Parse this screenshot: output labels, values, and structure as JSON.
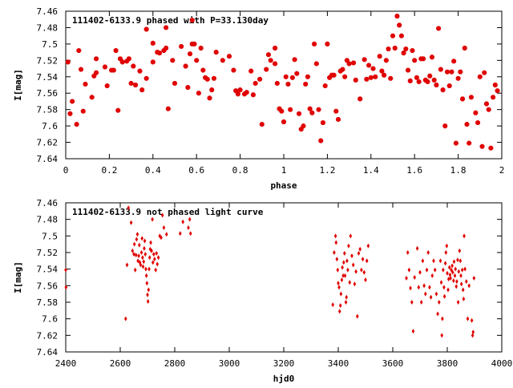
{
  "chart_data": [
    {
      "type": "scatter",
      "title": "111402-6133.9 phased with P=33.130day",
      "xlabel": "phase",
      "ylabel": "I[mag]",
      "xlim": [
        0,
        2
      ],
      "ylim": [
        7.64,
        7.46
      ],
      "y_inverted": true,
      "xticks": [
        "0",
        "0.2",
        "0.4",
        "0.6",
        "0.8",
        "1",
        "1.2",
        "1.4",
        "1.6",
        "1.8",
        "2"
      ],
      "yticks": [
        "7.46",
        "7.48",
        "7.5",
        "7.52",
        "7.54",
        "7.56",
        "7.58",
        "7.6",
        "7.62",
        "7.64"
      ],
      "marker_color": "#e00000",
      "points": [
        [
          0.01,
          7.522
        ],
        [
          0.02,
          7.585
        ],
        [
          0.03,
          7.57
        ],
        [
          0.05,
          7.598
        ],
        [
          0.06,
          7.508
        ],
        [
          0.07,
          7.531
        ],
        [
          0.08,
          7.582
        ],
        [
          0.09,
          7.549
        ],
        [
          0.12,
          7.565
        ],
        [
          0.13,
          7.539
        ],
        [
          0.14,
          7.535
        ],
        [
          0.14,
          7.518
        ],
        [
          0.18,
          7.528
        ],
        [
          0.19,
          7.551
        ],
        [
          0.21,
          7.532
        ],
        [
          0.23,
          7.508
        ],
        [
          0.22,
          7.532
        ],
        [
          0.24,
          7.581
        ],
        [
          0.25,
          7.518
        ],
        [
          0.26,
          7.522
        ],
        [
          0.28,
          7.521
        ],
        [
          0.29,
          7.518
        ],
        [
          0.3,
          7.548
        ],
        [
          0.31,
          7.527
        ],
        [
          0.32,
          7.55
        ],
        [
          0.34,
          7.533
        ],
        [
          0.35,
          7.556
        ],
        [
          0.37,
          7.542
        ],
        [
          0.37,
          7.482
        ],
        [
          0.4,
          7.522
        ],
        [
          0.4,
          7.499
        ],
        [
          0.42,
          7.51
        ],
        [
          0.43,
          7.511
        ],
        [
          0.45,
          7.508
        ],
        [
          0.46,
          7.48
        ],
        [
          0.46,
          7.505
        ],
        [
          0.47,
          7.579
        ],
        [
          0.49,
          7.52
        ],
        [
          0.5,
          7.548
        ],
        [
          0.53,
          7.503
        ],
        [
          0.55,
          7.527
        ],
        [
          0.56,
          7.553
        ],
        [
          0.57,
          7.512
        ],
        [
          0.58,
          7.471
        ],
        [
          0.58,
          7.5
        ],
        [
          0.59,
          7.5
        ],
        [
          0.6,
          7.52
        ],
        [
          0.61,
          7.56
        ],
        [
          0.62,
          7.505
        ],
        [
          0.63,
          7.532
        ],
        [
          0.64,
          7.541
        ],
        [
          0.65,
          7.543
        ],
        [
          0.66,
          7.566
        ],
        [
          0.67,
          7.556
        ],
        [
          0.68,
          7.542
        ],
        [
          0.69,
          7.51
        ],
        [
          0.72,
          7.52
        ],
        [
          0.75,
          7.515
        ],
        [
          0.77,
          7.532
        ],
        [
          0.78,
          7.557
        ],
        [
          0.79,
          7.561
        ],
        [
          0.8,
          7.556
        ],
        [
          0.82,
          7.561
        ],
        [
          0.83,
          7.559
        ],
        [
          0.85,
          7.533
        ],
        [
          0.86,
          7.562
        ],
        [
          0.87,
          7.548
        ],
        [
          0.89,
          7.543
        ],
        [
          0.9,
          7.598
        ],
        [
          0.92,
          7.531
        ],
        [
          0.93,
          7.513
        ],
        [
          0.94,
          7.52
        ],
        [
          0.96,
          7.505
        ],
        [
          0.96,
          7.524
        ],
        [
          0.97,
          7.548
        ],
        [
          0.98,
          7.579
        ],
        [
          0.99,
          7.582
        ],
        [
          1.0,
          7.595
        ],
        [
          1.01,
          7.54
        ],
        [
          1.02,
          7.549
        ],
        [
          1.03,
          7.58
        ],
        [
          1.04,
          7.541
        ],
        [
          1.05,
          7.519
        ],
        [
          1.06,
          7.536
        ],
        [
          1.07,
          7.585
        ],
        [
          1.08,
          7.604
        ],
        [
          1.09,
          7.6
        ],
        [
          1.1,
          7.549
        ],
        [
          1.11,
          7.54
        ],
        [
          1.12,
          7.579
        ],
        [
          1.13,
          7.584
        ],
        [
          1.14,
          7.5
        ],
        [
          1.15,
          7.524
        ],
        [
          1.16,
          7.58
        ],
        [
          1.17,
          7.618
        ],
        [
          1.18,
          7.596
        ],
        [
          1.19,
          7.551
        ],
        [
          1.2,
          7.5
        ],
        [
          1.21,
          7.541
        ],
        [
          1.22,
          7.538
        ],
        [
          1.23,
          7.538
        ],
        [
          1.24,
          7.582
        ],
        [
          1.25,
          7.592
        ],
        [
          1.26,
          7.533
        ],
        [
          1.27,
          7.531
        ],
        [
          1.28,
          7.54
        ],
        [
          1.29,
          7.52
        ],
        [
          1.3,
          7.524
        ],
        [
          1.32,
          7.523
        ],
        [
          1.33,
          7.544
        ],
        [
          1.35,
          7.567
        ],
        [
          1.37,
          7.519
        ],
        [
          1.38,
          7.543
        ],
        [
          1.39,
          7.526
        ],
        [
          1.4,
          7.541
        ],
        [
          1.41,
          7.53
        ],
        [
          1.42,
          7.54
        ],
        [
          1.44,
          7.515
        ],
        [
          1.45,
          7.533
        ],
        [
          1.46,
          7.538
        ],
        [
          1.47,
          7.52
        ],
        [
          1.48,
          7.506
        ],
        [
          1.49,
          7.542
        ],
        [
          1.5,
          7.49
        ],
        [
          1.51,
          7.505
        ],
        [
          1.52,
          7.466
        ],
        [
          1.53,
          7.477
        ],
        [
          1.54,
          7.49
        ],
        [
          1.55,
          7.511
        ],
        [
          1.56,
          7.506
        ],
        [
          1.57,
          7.532
        ],
        [
          1.58,
          7.545
        ],
        [
          1.59,
          7.508
        ],
        [
          1.6,
          7.52
        ],
        [
          1.61,
          7.541
        ],
        [
          1.62,
          7.546
        ],
        [
          1.63,
          7.518
        ],
        [
          1.64,
          7.518
        ],
        [
          1.65,
          7.544
        ],
        [
          1.66,
          7.546
        ],
        [
          1.67,
          7.539
        ],
        [
          1.68,
          7.516
        ],
        [
          1.69,
          7.544
        ],
        [
          1.7,
          7.55
        ],
        [
          1.71,
          7.481
        ],
        [
          1.72,
          7.531
        ],
        [
          1.73,
          7.556
        ],
        [
          1.74,
          7.6
        ],
        [
          1.75,
          7.534
        ],
        [
          1.76,
          7.551
        ],
        [
          1.77,
          7.534
        ],
        [
          1.78,
          7.521
        ],
        [
          1.79,
          7.621
        ],
        [
          1.8,
          7.542
        ],
        [
          1.81,
          7.534
        ],
        [
          1.82,
          7.567
        ],
        [
          1.83,
          7.505
        ],
        [
          1.84,
          7.598
        ],
        [
          1.85,
          7.621
        ],
        [
          1.86,
          7.565
        ],
        [
          1.88,
          7.584
        ],
        [
          1.89,
          7.596
        ],
        [
          1.9,
          7.54
        ],
        [
          1.91,
          7.625
        ],
        [
          1.92,
          7.535
        ],
        [
          1.93,
          7.573
        ],
        [
          1.94,
          7.58
        ],
        [
          1.95,
          7.627
        ],
        [
          1.96,
          7.565
        ],
        [
          1.97,
          7.55
        ],
        [
          1.98,
          7.557
        ]
      ]
    },
    {
      "type": "scatter",
      "title": "111402-6133.9 not phased light curve",
      "xlabel": "hjd0",
      "ylabel": "I[mag]",
      "xlim": [
        2400,
        4000
      ],
      "ylim": [
        7.64,
        7.46
      ],
      "y_inverted": true,
      "xticks": [
        "2400",
        "2600",
        "2800",
        "3000",
        "3200",
        "3400",
        "3600",
        "3800",
        "4000"
      ],
      "yticks": [
        "7.46",
        "7.48",
        "7.5",
        "7.52",
        "7.54",
        "7.56",
        "7.58",
        "7.6",
        "7.62",
        "7.64"
      ],
      "marker_color": "#e00000",
      "points": [
        [
          2400,
          7.541
        ],
        [
          2401,
          7.562
        ],
        [
          2620,
          7.6
        ],
        [
          2625,
          7.535
        ],
        [
          2630,
          7.466
        ],
        [
          2640,
          7.484
        ],
        [
          2645,
          7.518
        ],
        [
          2650,
          7.522
        ],
        [
          2652,
          7.51
        ],
        [
          2655,
          7.541
        ],
        [
          2658,
          7.523
        ],
        [
          2660,
          7.504
        ],
        [
          2663,
          7.498
        ],
        [
          2665,
          7.53
        ],
        [
          2668,
          7.524
        ],
        [
          2670,
          7.511
        ],
        [
          2672,
          7.532
        ],
        [
          2675,
          7.535
        ],
        [
          2678,
          7.52
        ],
        [
          2680,
          7.503
        ],
        [
          2682,
          7.526
        ],
        [
          2684,
          7.537
        ],
        [
          2686,
          7.531
        ],
        [
          2688,
          7.515
        ],
        [
          2690,
          7.506
        ],
        [
          2692,
          7.522
        ],
        [
          2694,
          7.54
        ],
        [
          2696,
          7.548
        ],
        [
          2698,
          7.557
        ],
        [
          2700,
          7.571
        ],
        [
          2702,
          7.579
        ],
        [
          2704,
          7.565
        ],
        [
          2706,
          7.54
        ],
        [
          2708,
          7.526
        ],
        [
          2710,
          7.516
        ],
        [
          2712,
          7.508
        ],
        [
          2715,
          7.518
        ],
        [
          2718,
          7.48
        ],
        [
          2720,
          7.532
        ],
        [
          2723,
          7.522
        ],
        [
          2726,
          7.528
        ],
        [
          2730,
          7.541
        ],
        [
          2733,
          7.521
        ],
        [
          2736,
          7.534
        ],
        [
          2740,
          7.526
        ],
        [
          2745,
          7.5
        ],
        [
          2750,
          7.502
        ],
        [
          2755,
          7.475
        ],
        [
          2760,
          7.49
        ],
        [
          2770,
          7.498
        ],
        [
          2820,
          7.497
        ],
        [
          2830,
          7.483
        ],
        [
          2850,
          7.49
        ],
        [
          2855,
          7.48
        ],
        [
          2858,
          7.497
        ],
        [
          3380,
          7.583
        ],
        [
          3385,
          7.52
        ],
        [
          3390,
          7.5
        ],
        [
          3392,
          7.508
        ],
        [
          3395,
          7.528
        ],
        [
          3398,
          7.541
        ],
        [
          3400,
          7.557
        ],
        [
          3403,
          7.562
        ],
        [
          3405,
          7.591
        ],
        [
          3408,
          7.584
        ],
        [
          3410,
          7.57
        ],
        [
          3413,
          7.553
        ],
        [
          3415,
          7.538
        ],
        [
          3418,
          7.548
        ],
        [
          3420,
          7.532
        ],
        [
          3423,
          7.521
        ],
        [
          3425,
          7.548
        ],
        [
          3428,
          7.58
        ],
        [
          3430,
          7.574
        ],
        [
          3432,
          7.53
        ],
        [
          3435,
          7.541
        ],
        [
          3438,
          7.512
        ],
        [
          3442,
          7.556
        ],
        [
          3445,
          7.5
        ],
        [
          3450,
          7.524
        ],
        [
          3455,
          7.535
        ],
        [
          3460,
          7.558
        ],
        [
          3465,
          7.543
        ],
        [
          3470,
          7.597
        ],
        [
          3475,
          7.521
        ],
        [
          3480,
          7.516
        ],
        [
          3485,
          7.541
        ],
        [
          3490,
          7.528
        ],
        [
          3495,
          7.544
        ],
        [
          3500,
          7.553
        ],
        [
          3505,
          7.53
        ],
        [
          3510,
          7.512
        ],
        [
          3650,
          7.551
        ],
        [
          3655,
          7.52
        ],
        [
          3660,
          7.541
        ],
        [
          3665,
          7.563
        ],
        [
          3670,
          7.58
        ],
        [
          3675,
          7.615
        ],
        [
          3680,
          7.55
        ],
        [
          3690,
          7.515
        ],
        [
          3695,
          7.562
        ],
        [
          3700,
          7.544
        ],
        [
          3705,
          7.58
        ],
        [
          3710,
          7.53
        ],
        [
          3715,
          7.56
        ],
        [
          3720,
          7.57
        ],
        [
          3725,
          7.541
        ],
        [
          3730,
          7.52
        ],
        [
          3735,
          7.562
        ],
        [
          3740,
          7.574
        ],
        [
          3745,
          7.548
        ],
        [
          3750,
          7.53
        ],
        [
          3755,
          7.541
        ],
        [
          3760,
          7.57
        ],
        [
          3765,
          7.594
        ],
        [
          3770,
          7.58
        ],
        [
          3775,
          7.53
        ],
        [
          3778,
          7.556
        ],
        [
          3780,
          7.62
        ],
        [
          3782,
          7.6
        ],
        [
          3785,
          7.541
        ],
        [
          3788,
          7.562
        ],
        [
          3790,
          7.573
        ],
        [
          3793,
          7.533
        ],
        [
          3795,
          7.52
        ],
        [
          3798,
          7.512
        ],
        [
          3800,
          7.545
        ],
        [
          3803,
          7.565
        ],
        [
          3805,
          7.552
        ],
        [
          3808,
          7.538
        ],
        [
          3810,
          7.547
        ],
        [
          3812,
          7.551
        ],
        [
          3815,
          7.541
        ],
        [
          3818,
          7.536
        ],
        [
          3820,
          7.544
        ],
        [
          3823,
          7.554
        ],
        [
          3825,
          7.531
        ],
        [
          3828,
          7.548
        ],
        [
          3830,
          7.54
        ],
        [
          3833,
          7.561
        ],
        [
          3835,
          7.555
        ],
        [
          3838,
          7.529
        ],
        [
          3840,
          7.58
        ],
        [
          3842,
          7.543
        ],
        [
          3845,
          7.518
        ],
        [
          3848,
          7.53
        ],
        [
          3850,
          7.548
        ],
        [
          3852,
          7.558
        ],
        [
          3855,
          7.541
        ],
        [
          3858,
          7.565
        ],
        [
          3860,
          7.576
        ],
        [
          3862,
          7.5
        ],
        [
          3865,
          7.54
        ],
        [
          3870,
          7.555
        ],
        [
          3875,
          7.6
        ],
        [
          3880,
          7.56
        ],
        [
          3890,
          7.602
        ],
        [
          3893,
          7.62
        ],
        [
          3895,
          7.616
        ],
        [
          3898,
          7.551
        ]
      ]
    }
  ]
}
